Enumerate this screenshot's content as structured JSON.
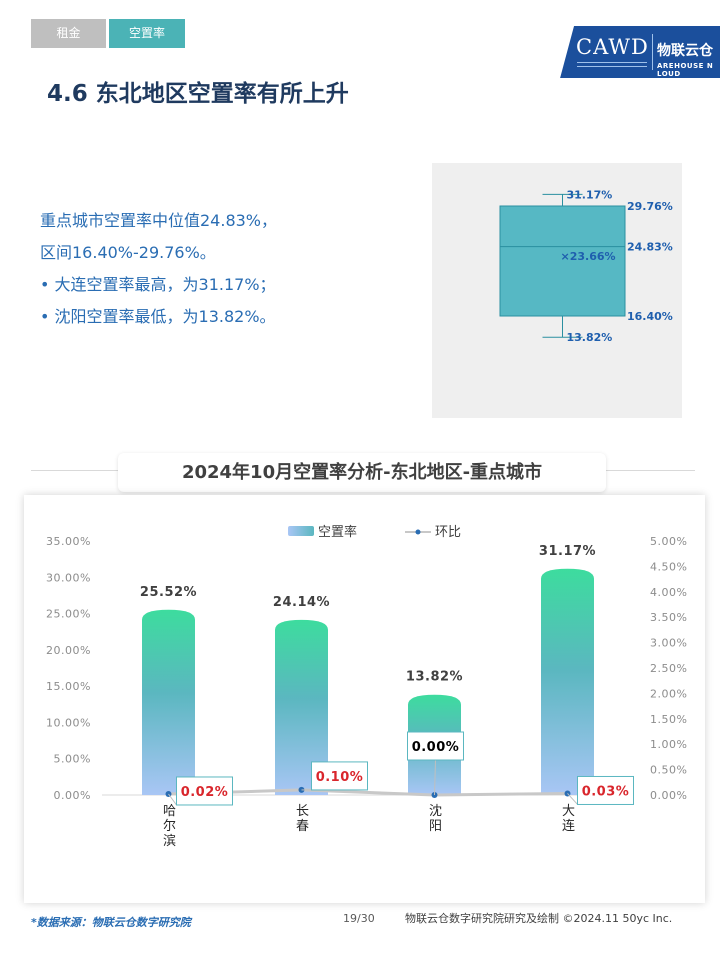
{
  "tabs": [
    {
      "label": "租金",
      "active": false
    },
    {
      "label": "空置率",
      "active": true
    }
  ],
  "logo": {
    "name": "CAWD",
    "brand": "物联云仓",
    "brand_en": "AREHOUSE N LOUD"
  },
  "page_title": "4.6 东北地区空置率有所上升",
  "summary": {
    "line1": "重点城市空置率中位值24.83%，",
    "line2": "区间16.40%-29.76%。",
    "bullet1": "•  大连空置率最高，为31.17%；",
    "bullet2": "•  沈阳空置率最低，为13.82%。"
  },
  "boxplot": {
    "max": 31.17,
    "q3": 29.76,
    "median": 24.83,
    "mean": 23.66,
    "q1": 16.4,
    "min": 13.82,
    "labels": {
      "max": "31.17%",
      "q3": "29.76%",
      "median": "24.83%",
      "mean": "23.66%",
      "q1": "16.40%",
      "min": "13.82%"
    },
    "fill": "#56b8c4",
    "stroke": "#2a8fa0"
  },
  "chart_title": "2024年10月空置率分析-东北地区-重点城市",
  "chart_data": {
    "type": "bar",
    "categories": [
      "哈尔滨",
      "长春",
      "沈阳",
      "大连"
    ],
    "series": [
      {
        "name": "空置率",
        "values": [
          25.52,
          24.14,
          13.82,
          31.17
        ],
        "axis": "left",
        "labels": [
          "25.52%",
          "24.14%",
          "13.82%",
          "31.17%"
        ]
      },
      {
        "name": "环比",
        "type": "line",
        "values": [
          0.02,
          0.1,
          0.0,
          0.03
        ],
        "axis": "right",
        "labels": [
          "0.02%",
          "0.10%",
          "0.00%",
          "0.03%"
        ]
      }
    ],
    "ylim": [
      0,
      35
    ],
    "y_ticks": [
      "0.00%",
      "5.00%",
      "10.00%",
      "15.00%",
      "20.00%",
      "25.00%",
      "30.00%",
      "35.00%"
    ],
    "y2lim": [
      0,
      5
    ],
    "y2_ticks": [
      "0.00%",
      "0.50%",
      "1.00%",
      "1.50%",
      "2.00%",
      "2.50%",
      "3.00%",
      "3.50%",
      "4.00%",
      "4.50%",
      "5.00%"
    ],
    "legend": "top-center",
    "grid": false,
    "colors": {
      "bar_top": "#3ddc9e",
      "bar_mid": "#5bb7c0",
      "bar_bottom": "#a9c6f5",
      "line": "#c8c8c8",
      "point": "#2a6db3",
      "label_positive": "#d9262c",
      "label_zero": "#000000"
    }
  },
  "footer": {
    "source": "*数据来源：物联云仓数字研究院",
    "page": "19/30",
    "credit": "物联云仓数字研究院研究及绘制   ©2024.11 50yc Inc."
  }
}
